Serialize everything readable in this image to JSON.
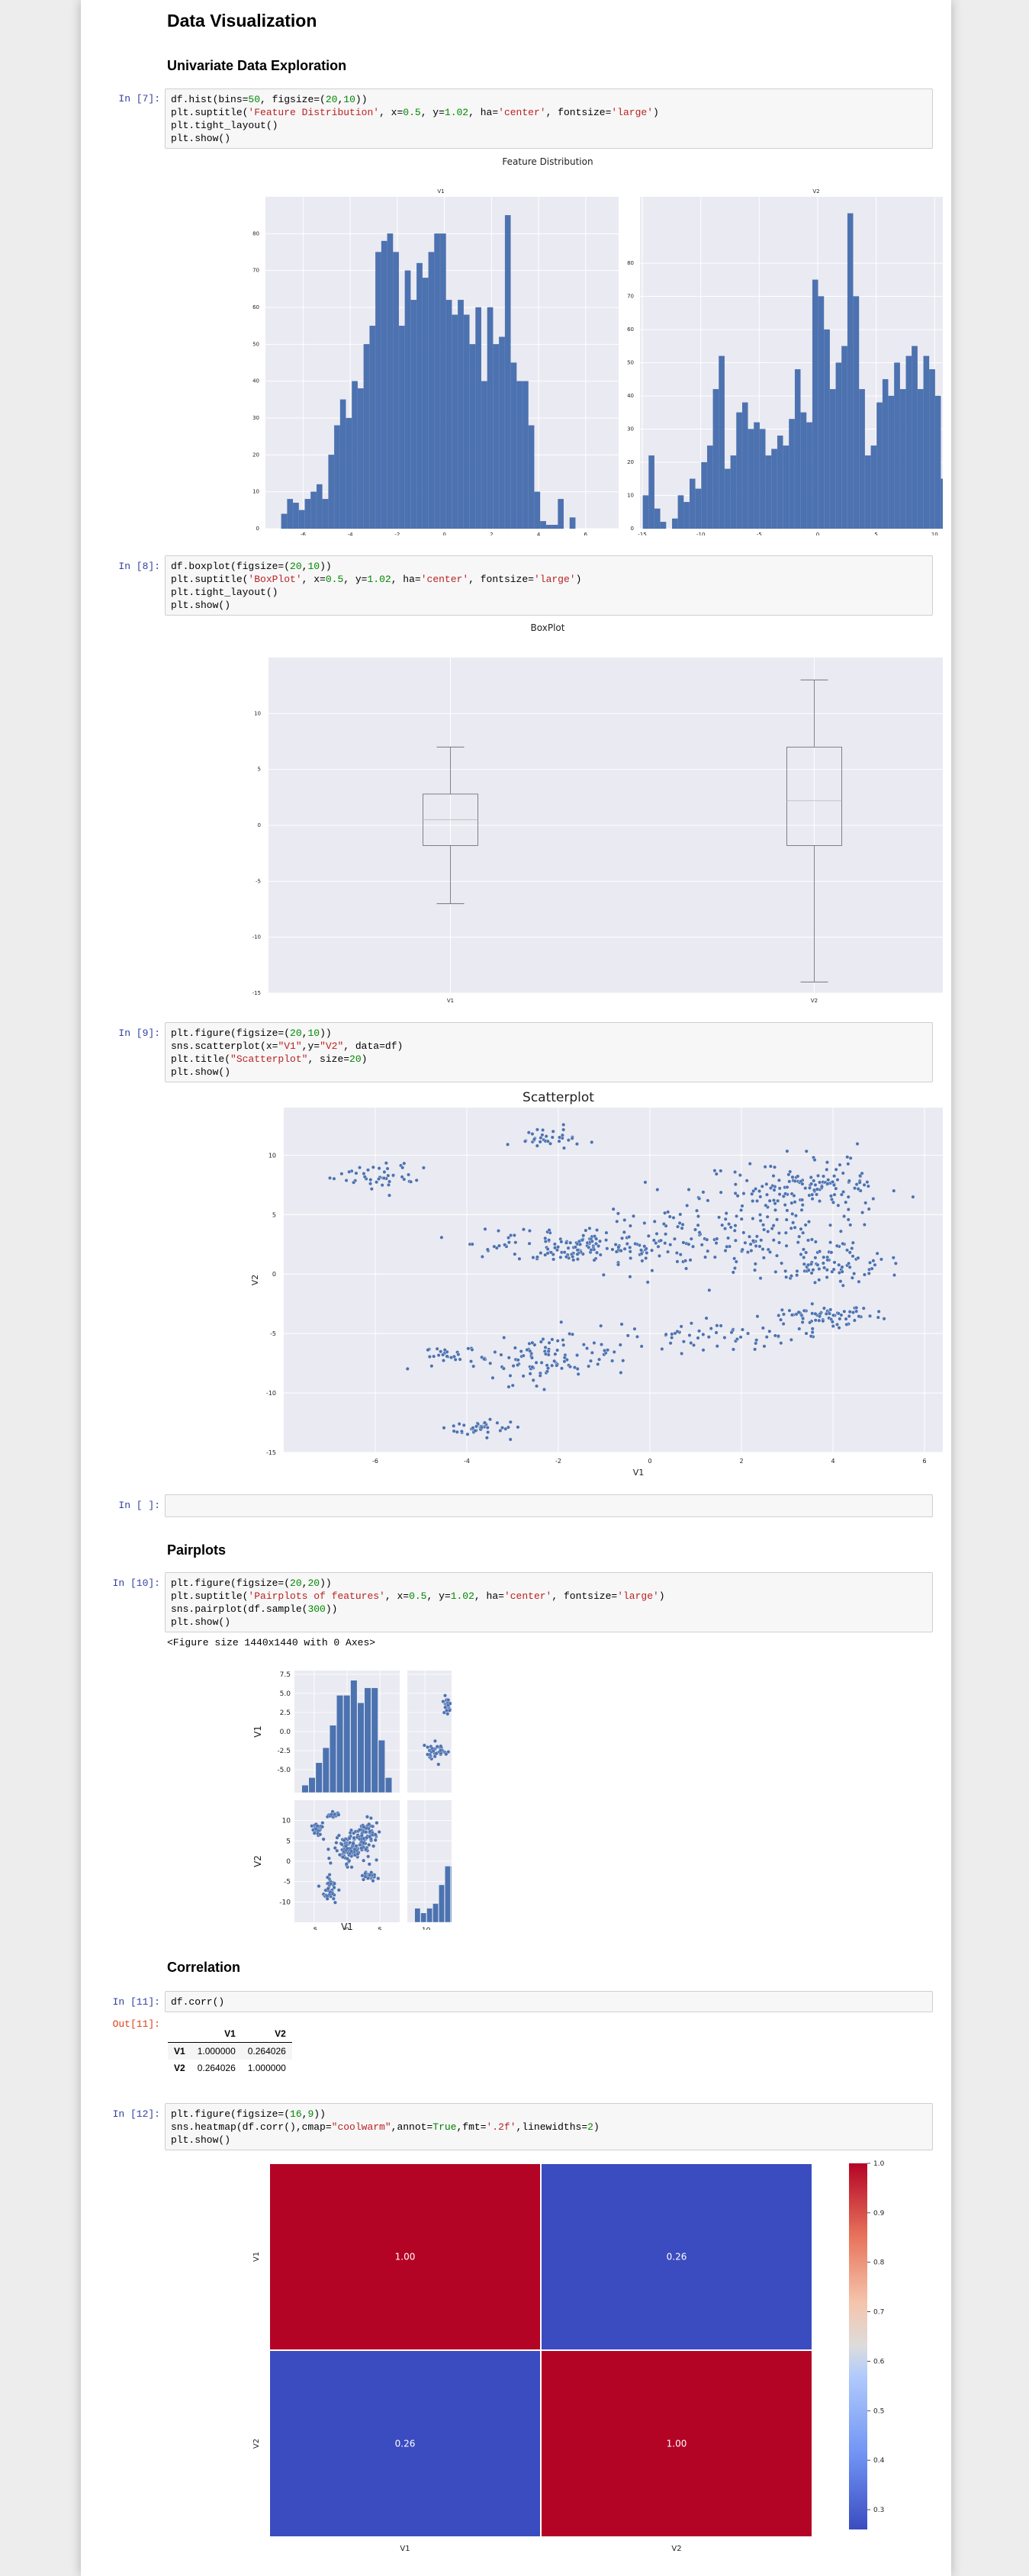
{
  "headings": {
    "title": "Data Visualization",
    "univariate": "Univariate Data Exploration",
    "pairplots": "Pairplots",
    "correlation": "Correlation"
  },
  "cells": {
    "hist": {
      "prompt": "In [7]:",
      "lines": [
        [
          {
            "t": "df.hist(bins=",
            "c": "#000"
          },
          {
            "t": "50",
            "c": "#008800"
          },
          {
            "t": ", figsize=(",
            "c": "#000"
          },
          {
            "t": "20",
            "c": "#008800"
          },
          {
            "t": ",",
            "c": "#000"
          },
          {
            "t": "10",
            "c": "#008800"
          },
          {
            "t": "))",
            "c": "#000"
          }
        ],
        [
          {
            "t": "plt.suptitle(",
            "c": "#000"
          },
          {
            "t": "'Feature Distribution'",
            "c": "#ba2121"
          },
          {
            "t": ", x=",
            "c": "#000"
          },
          {
            "t": "0.5",
            "c": "#008800"
          },
          {
            "t": ", y=",
            "c": "#000"
          },
          {
            "t": "1.02",
            "c": "#008800"
          },
          {
            "t": ", ha=",
            "c": "#000"
          },
          {
            "t": "'center'",
            "c": "#ba2121"
          },
          {
            "t": ", fontsize=",
            "c": "#000"
          },
          {
            "t": "'large'",
            "c": "#ba2121"
          },
          {
            "t": ")",
            "c": "#000"
          }
        ],
        [
          {
            "t": "plt.tight_layout()",
            "c": "#000"
          }
        ],
        [
          {
            "t": "plt.show()",
            "c": "#000"
          }
        ]
      ]
    },
    "box": {
      "prompt": "In [8]:",
      "lines": [
        [
          {
            "t": "df.boxplot(figsize=(",
            "c": "#000"
          },
          {
            "t": "20",
            "c": "#008800"
          },
          {
            "t": ",",
            "c": "#000"
          },
          {
            "t": "10",
            "c": "#008800"
          },
          {
            "t": "))",
            "c": "#000"
          }
        ],
        [
          {
            "t": "plt.suptitle(",
            "c": "#000"
          },
          {
            "t": "'BoxPlot'",
            "c": "#ba2121"
          },
          {
            "t": ", x=",
            "c": "#000"
          },
          {
            "t": "0.5",
            "c": "#008800"
          },
          {
            "t": ", y=",
            "c": "#000"
          },
          {
            "t": "1.02",
            "c": "#008800"
          },
          {
            "t": ", ha=",
            "c": "#000"
          },
          {
            "t": "'center'",
            "c": "#ba2121"
          },
          {
            "t": ", fontsize=",
            "c": "#000"
          },
          {
            "t": "'large'",
            "c": "#ba2121"
          },
          {
            "t": ")",
            "c": "#000"
          }
        ],
        [
          {
            "t": "plt.tight_layout()",
            "c": "#000"
          }
        ],
        [
          {
            "t": "plt.show()",
            "c": "#000"
          }
        ]
      ]
    },
    "scatter": {
      "prompt": "In [9]:",
      "lines": [
        [
          {
            "t": "plt.figure(figsize=(",
            "c": "#000"
          },
          {
            "t": "20",
            "c": "#008800"
          },
          {
            "t": ",",
            "c": "#000"
          },
          {
            "t": "10",
            "c": "#008800"
          },
          {
            "t": "))",
            "c": "#000"
          }
        ],
        [
          {
            "t": "sns.scatterplot(x=",
            "c": "#000"
          },
          {
            "t": "\"V1\"",
            "c": "#ba2121"
          },
          {
            "t": ",y=",
            "c": "#000"
          },
          {
            "t": "\"V2\"",
            "c": "#ba2121"
          },
          {
            "t": ", data=df)",
            "c": "#000"
          }
        ],
        [
          {
            "t": "plt.title(",
            "c": "#000"
          },
          {
            "t": "\"Scatterplot\"",
            "c": "#ba2121"
          },
          {
            "t": ", size=",
            "c": "#000"
          },
          {
            "t": "20",
            "c": "#008800"
          },
          {
            "t": ")",
            "c": "#000"
          }
        ],
        [
          {
            "t": "plt.show()",
            "c": "#000"
          }
        ]
      ]
    },
    "empty": {
      "prompt": "In [ ]:",
      "lines": []
    },
    "pair": {
      "prompt": "In [10]:",
      "lines": [
        [
          {
            "t": "plt.figure(figsize=(",
            "c": "#000"
          },
          {
            "t": "20",
            "c": "#008800"
          },
          {
            "t": ",",
            "c": "#000"
          },
          {
            "t": "20",
            "c": "#008800"
          },
          {
            "t": "))",
            "c": "#000"
          }
        ],
        [
          {
            "t": "plt.suptitle(",
            "c": "#000"
          },
          {
            "t": "'Pairplots of features'",
            "c": "#ba2121"
          },
          {
            "t": ", x=",
            "c": "#000"
          },
          {
            "t": "0.5",
            "c": "#008800"
          },
          {
            "t": ", y=",
            "c": "#000"
          },
          {
            "t": "1.02",
            "c": "#008800"
          },
          {
            "t": ", ha=",
            "c": "#000"
          },
          {
            "t": "'center'",
            "c": "#ba2121"
          },
          {
            "t": ", fontsize=",
            "c": "#000"
          },
          {
            "t": "'large'",
            "c": "#ba2121"
          },
          {
            "t": ")",
            "c": "#000"
          }
        ],
        [
          {
            "t": "sns.pairplot(df.sample(",
            "c": "#000"
          },
          {
            "t": "300",
            "c": "#008800"
          },
          {
            "t": "))",
            "c": "#000"
          }
        ],
        [
          {
            "t": "plt.show()",
            "c": "#000"
          }
        ]
      ]
    },
    "corr": {
      "prompt": "In [11]:",
      "out_prompt": "Out[11]:",
      "lines": [
        [
          {
            "t": "df.corr()",
            "c": "#000"
          }
        ]
      ]
    },
    "heat": {
      "prompt": "In [12]:",
      "lines": [
        [
          {
            "t": "plt.figure(figsize=(",
            "c": "#000"
          },
          {
            "t": "16",
            "c": "#008800"
          },
          {
            "t": ",",
            "c": "#000"
          },
          {
            "t": "9",
            "c": "#008800"
          },
          {
            "t": "))",
            "c": "#000"
          }
        ],
        [
          {
            "t": "sns.heatmap(df.corr(),cmap=",
            "c": "#000"
          },
          {
            "t": "\"coolwarm\"",
            "c": "#ba2121"
          },
          {
            "t": ",annot=",
            "c": "#000"
          },
          {
            "t": "True",
            "c": "#008000"
          },
          {
            "t": ",fmt=",
            "c": "#000"
          },
          {
            "t": "'.2f'",
            "c": "#ba2121"
          },
          {
            "t": ",linewidths=",
            "c": "#000"
          },
          {
            "t": "2",
            "c": "#008800"
          },
          {
            "t": ")",
            "c": "#000"
          }
        ],
        [
          {
            "t": "plt.show()",
            "c": "#000"
          }
        ]
      ]
    }
  },
  "pair_output_text": "<Figure size 1440x1440 with 0 Axes>",
  "corr_table": {
    "columns": [
      "V1",
      "V2"
    ],
    "rows": [
      {
        "label": "V1",
        "values": [
          "1.000000",
          "0.264026"
        ]
      },
      {
        "label": "V2",
        "values": [
          "0.264026",
          "1.000000"
        ]
      }
    ]
  },
  "chart_data": [
    {
      "type": "bar",
      "title": "Feature Distribution",
      "subplot_title": "V1",
      "x": [
        -6.8,
        -6.55,
        -6.3,
        -6.05,
        -5.8,
        -5.55,
        -5.3,
        -5.05,
        -4.8,
        -4.55,
        -4.3,
        -4.05,
        -3.8,
        -3.55,
        -3.3,
        -3.05,
        -2.8,
        -2.55,
        -2.3,
        -2.05,
        -1.8,
        -1.55,
        -1.3,
        -1.05,
        -0.8,
        -0.55,
        -0.3,
        -0.05,
        0.2,
        0.45,
        0.7,
        0.95,
        1.2,
        1.45,
        1.7,
        1.95,
        2.2,
        2.45,
        2.7,
        2.95,
        3.2,
        3.45,
        3.7,
        3.95,
        4.2,
        4.45,
        4.7,
        4.95,
        5.2,
        5.45
      ],
      "values": [
        4,
        8,
        7,
        5,
        8,
        10,
        12,
        8,
        20,
        28,
        35,
        30,
        40,
        38,
        50,
        55,
        75,
        78,
        80,
        75,
        55,
        70,
        62,
        72,
        68,
        75,
        80,
        80,
        62,
        58,
        62,
        58,
        50,
        60,
        40,
        60,
        50,
        52,
        85,
        45,
        40,
        40,
        28,
        10,
        2,
        1,
        1,
        8,
        0,
        3
      ],
      "ylim": [
        0,
        90
      ],
      "xticks": [
        -6,
        -4,
        -2,
        0,
        2,
        4,
        6
      ],
      "yticks": [
        0,
        10,
        20,
        30,
        40,
        50,
        60,
        70,
        80
      ]
    },
    {
      "type": "bar",
      "title": "Feature Distribution",
      "subplot_title": "V2",
      "x": [
        -14.7,
        -14.2,
        -13.7,
        -13.2,
        -12.7,
        -12.2,
        -11.7,
        -11.2,
        -10.7,
        -10.2,
        -9.7,
        -9.2,
        -8.7,
        -8.2,
        -7.7,
        -7.2,
        -6.7,
        -6.2,
        -5.7,
        -5.2,
        -4.7,
        -4.2,
        -3.7,
        -3.2,
        -2.7,
        -2.2,
        -1.7,
        -1.2,
        -0.7,
        -0.2,
        0.3,
        0.8,
        1.3,
        1.8,
        2.3,
        2.8,
        3.3,
        3.8,
        4.3,
        4.8,
        5.3,
        5.8,
        6.3,
        6.8,
        7.3,
        7.8,
        8.3,
        8.8,
        9.3,
        9.8,
        10.3,
        10.8,
        11.3,
        11.8,
        12.3,
        12.8,
        13.3,
        13.8,
        14.3,
        14.8
      ],
      "values": [
        10,
        22,
        6,
        2,
        0,
        3,
        10,
        8,
        15,
        12,
        20,
        25,
        42,
        52,
        18,
        22,
        35,
        38,
        30,
        32,
        30,
        22,
        24,
        28,
        25,
        33,
        48,
        35,
        32,
        75,
        70,
        60,
        42,
        50,
        55,
        95,
        70,
        42,
        22,
        25,
        38,
        45,
        40,
        50,
        42,
        52,
        55,
        42,
        52,
        48,
        40,
        15,
        12,
        10,
        6,
        4,
        2,
        1,
        1,
        0
      ],
      "ylim": [
        0,
        100
      ],
      "xticks": [
        -15,
        -10,
        -5,
        0,
        5,
        10
      ],
      "yticks": [
        0,
        10,
        20,
        30,
        40,
        50,
        60,
        70,
        80
      ]
    },
    {
      "type": "box",
      "title": "BoxPlot",
      "categories": [
        "V1",
        "V2"
      ],
      "boxes": [
        {
          "name": "V1",
          "whisker_low": -7.0,
          "q1": -1.8,
          "median": 0.5,
          "q3": 2.8,
          "whisker_high": 7.0
        },
        {
          "name": "V2",
          "whisker_low": -14.0,
          "q1": -1.8,
          "median": 2.2,
          "q3": 7.0,
          "whisker_high": 13.0
        }
      ],
      "ylim": [
        -15,
        15
      ],
      "yticks": [
        -15,
        -10,
        -5,
        0,
        5,
        10
      ]
    },
    {
      "type": "scatter",
      "title": "Scatterplot",
      "xlabel": "V1",
      "ylabel": "V2",
      "xlim": [
        -8,
        7.5
      ],
      "ylim": [
        -15,
        14
      ],
      "xticks": [
        -6,
        -4,
        -2,
        0,
        2,
        4,
        6
      ],
      "yticks": [
        -15,
        -10,
        -5,
        0,
        5,
        10
      ],
      "clusters": [
        {
          "cx": -5.8,
          "cy": 8.2,
          "sx": 0.7,
          "sy": 0.8,
          "n": 45
        },
        {
          "cx": -2.3,
          "cy": 11.5,
          "sx": 0.6,
          "sy": 0.7,
          "n": 35
        },
        {
          "cx": -1.5,
          "cy": 2.2,
          "sx": 1.6,
          "sy": 1.0,
          "n": 150
        },
        {
          "cx": 1.5,
          "cy": 3.5,
          "sx": 1.8,
          "sy": 2.5,
          "n": 160
        },
        {
          "cx": 3.5,
          "cy": 7.5,
          "sx": 1.2,
          "sy": 1.5,
          "n": 140
        },
        {
          "cx": 4.0,
          "cy": 0.8,
          "sx": 1.0,
          "sy": 1.2,
          "n": 80
        },
        {
          "cx": 3.8,
          "cy": -3.6,
          "sx": 0.8,
          "sy": 0.6,
          "n": 70
        },
        {
          "cx": -2.2,
          "cy": -7.2,
          "sx": 0.9,
          "sy": 1.4,
          "n": 100
        },
        {
          "cx": -4.3,
          "cy": -7.0,
          "sx": 0.6,
          "sy": 0.8,
          "n": 30
        },
        {
          "cx": -3.6,
          "cy": -13.0,
          "sx": 0.6,
          "sy": 0.5,
          "n": 40
        },
        {
          "cx": 1.5,
          "cy": -5.2,
          "sx": 1.4,
          "sy": 0.8,
          "n": 60
        }
      ]
    },
    {
      "type": "pairplot",
      "variables": [
        "V1",
        "V2"
      ],
      "diag_V1": {
        "values": [
          1,
          2,
          4,
          6,
          9,
          13,
          13,
          15,
          12,
          14,
          14,
          7,
          2
        ],
        "xlim": [
          -7,
          7
        ]
      },
      "diag_V2": {
        "values": [
          3,
          2,
          3,
          4,
          8,
          12,
          12,
          14,
          17,
          22,
          24,
          14,
          16,
          11,
          5
        ],
        "xlim": [
          -14,
          14
        ]
      },
      "V1_yticks": [
        -5.0,
        -2.5,
        0.0,
        2.5,
        5.0,
        7.5
      ],
      "V2_yticks": [
        -10,
        -5,
        0,
        5,
        10
      ],
      "V1_xticks": [
        -5,
        0,
        5
      ],
      "V2_xticks": [
        -10,
        0,
        10
      ],
      "scatter_clusters": [
        {
          "cx": -4.5,
          "cy": 8.0,
          "sx": 0.7,
          "sy": 1.0,
          "n": 25
        },
        {
          "cx": -2.0,
          "cy": 11.5,
          "sx": 0.6,
          "sy": 0.7,
          "n": 20
        },
        {
          "cx": 0.5,
          "cy": 3.0,
          "sx": 2.0,
          "sy": 3.0,
          "n": 130
        },
        {
          "cx": 3.0,
          "cy": 7.0,
          "sx": 1.3,
          "sy": 2.0,
          "n": 60
        },
        {
          "cx": -2.5,
          "cy": -7.0,
          "sx": 1.0,
          "sy": 2.0,
          "n": 40
        },
        {
          "cx": 3.5,
          "cy": -3.5,
          "sx": 0.8,
          "sy": 0.8,
          "n": 25
        }
      ]
    },
    {
      "type": "heatmap",
      "x_labels": [
        "V1",
        "V2"
      ],
      "y_labels": [
        "V1",
        "V2"
      ],
      "values": [
        [
          1.0,
          0.26
        ],
        [
          0.26,
          1.0
        ]
      ],
      "annotations": [
        [
          "1.00",
          "0.26"
        ],
        [
          "0.26",
          "1.00"
        ]
      ],
      "colormap": "coolwarm",
      "colorbar_ticks": [
        "1.0",
        "0.9",
        "0.8",
        "0.7",
        "0.6",
        "0.5",
        "0.4",
        "0.3"
      ],
      "colorbar_range": [
        0.26,
        1.0
      ]
    }
  ],
  "colors": {
    "bar": "#4c72b0",
    "axes_bg": "#eaeaf2",
    "prompt_in": "#303f9f",
    "prompt_out": "#d84315",
    "heat_high": "#b40426",
    "heat_low": "#3b4cc0"
  }
}
